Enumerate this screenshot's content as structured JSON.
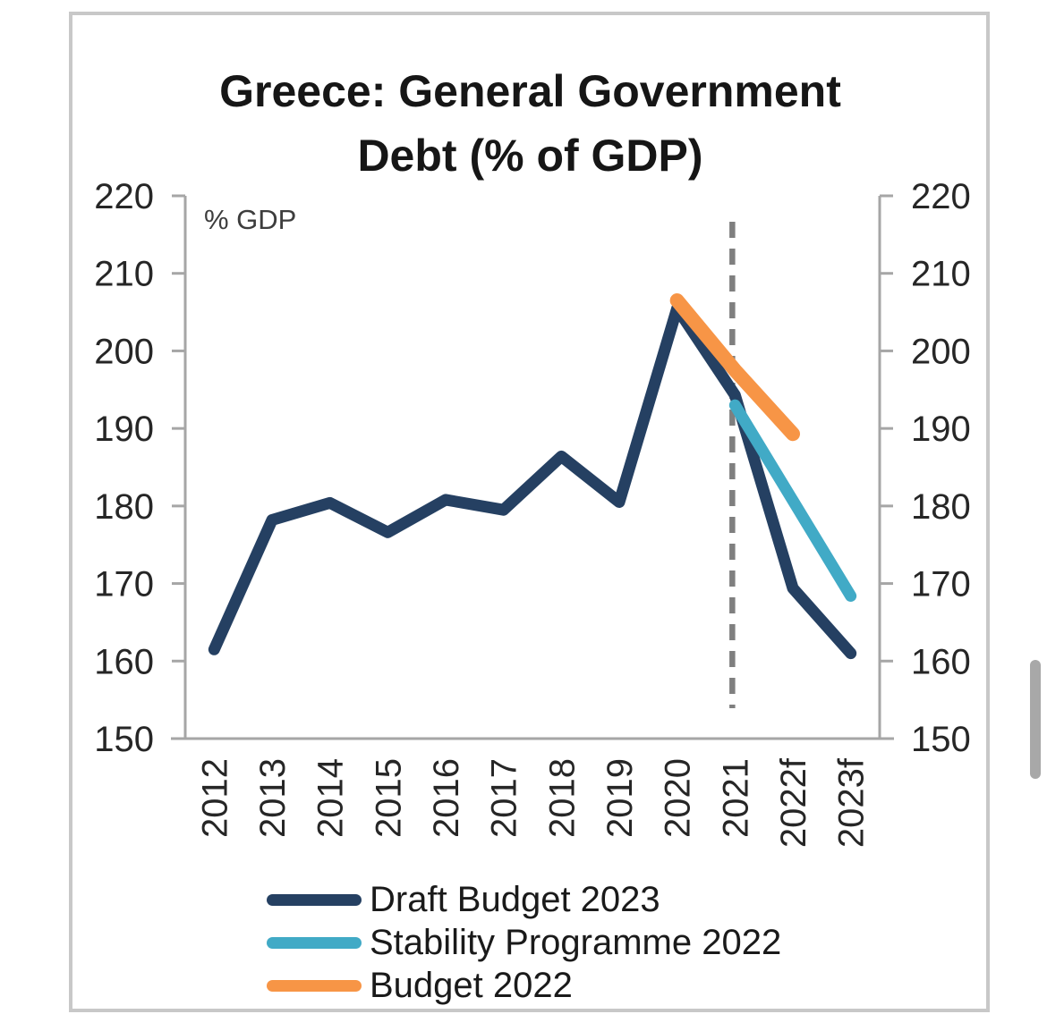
{
  "title": {
    "line1": "Greece: General Government",
    "line2": "Debt (% of GDP)"
  },
  "chart_data": {
    "type": "line",
    "title": "Greece: General Government Debt (% of GDP)",
    "unit_label": "% GDP",
    "categories": [
      "2012",
      "2013",
      "2014",
      "2015",
      "2016",
      "2017",
      "2018",
      "2019",
      "2020",
      "2021",
      "2022f",
      "2023f"
    ],
    "ylim": [
      150,
      220
    ],
    "ytick_step": 10,
    "y_axis_sides": [
      "left",
      "right"
    ],
    "grid": false,
    "legend_position": "bottom",
    "dashed_vline_category": "2021",
    "series": [
      {
        "name": "Draft Budget 2023",
        "color": "#254062",
        "values": [
          161.5,
          178.2,
          180.4,
          176.6,
          180.8,
          179.5,
          186.4,
          180.5,
          205.5,
          194.3,
          169.4,
          161.0
        ]
      },
      {
        "name": "Stability Programme 2022",
        "color": "#41aac6",
        "values": [
          null,
          null,
          null,
          null,
          null,
          null,
          null,
          null,
          null,
          193.0,
          180.7,
          168.4
        ]
      },
      {
        "name": "Budget 2022",
        "color": "#f79546",
        "values": [
          null,
          null,
          null,
          null,
          null,
          null,
          null,
          null,
          206.5,
          197.5,
          189.3,
          null
        ]
      }
    ],
    "axis_color": "#a6a6a6",
    "vline_color": "#7f7f7f",
    "tick_label_color": "#262626"
  },
  "legend": {
    "items": [
      {
        "label": "Draft Budget 2023",
        "color": "#254062"
      },
      {
        "label": "Stability Programme 2022",
        "color": "#41aac6"
      },
      {
        "label": "Budget 2022",
        "color": "#f79546"
      }
    ]
  },
  "panel": {
    "border_color": "#c8c8c8"
  },
  "scrollbar": {
    "color": "#a8a8a8"
  }
}
